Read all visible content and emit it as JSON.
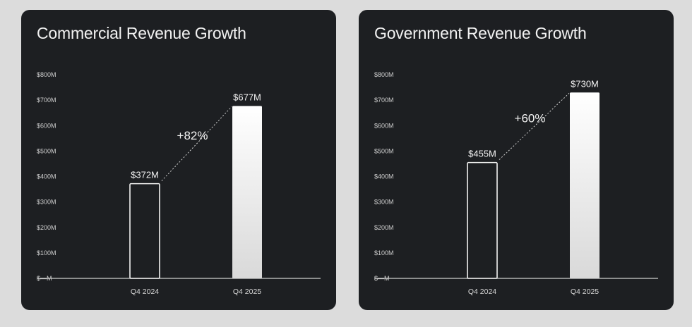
{
  "chart_data": [
    {
      "type": "bar",
      "title": "Commercial Revenue Growth",
      "categories": [
        "Q4 2024",
        "Q4 2025"
      ],
      "values": [
        372,
        677
      ],
      "value_labels": [
        "$372M",
        "$677M"
      ],
      "growth_label": "+82%",
      "yticks": [
        "$—M",
        "$100M",
        "$200M",
        "$300M",
        "$400M",
        "$500M",
        "$600M",
        "$700M",
        "$800M"
      ],
      "ylim": [
        0,
        800
      ],
      "grid": false
    },
    {
      "type": "bar",
      "title": "Government Revenue Growth",
      "categories": [
        "Q4 2024",
        "Q4 2025"
      ],
      "values": [
        455,
        730
      ],
      "value_labels": [
        "$455M",
        "$730M"
      ],
      "growth_label": "+60%",
      "yticks": [
        "$—M",
        "$100M",
        "$200M",
        "$300M",
        "$400M",
        "$500M",
        "$600M",
        "$700M",
        "$800M"
      ],
      "ylim": [
        0,
        800
      ],
      "grid": false
    }
  ]
}
